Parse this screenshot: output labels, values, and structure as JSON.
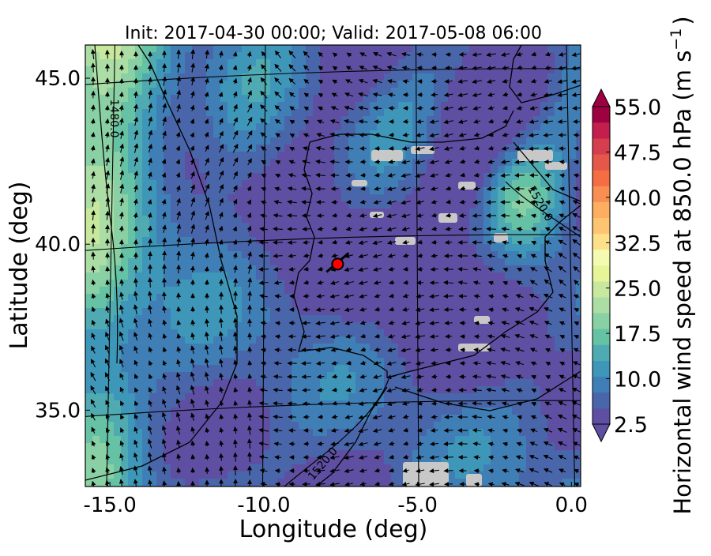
{
  "chart_data": {
    "type": "heatmap",
    "title": "Init: 2017-04-30 00:00; Valid: 2017-05-08 06:00",
    "xlabel": "Longitude (deg)",
    "ylabel": "Latitude (deg)",
    "xlim": [
      -15.8,
      0.3
    ],
    "ylim": [
      32.7,
      46.0
    ],
    "xticks": [
      "-15.0",
      "-10.0",
      "-5.0",
      "0.0"
    ],
    "yticks": [
      "35.0",
      "40.0",
      "45.0"
    ],
    "colorbar": {
      "label": "Horizontal wind speed at 850.0 hPa (m s",
      "label_sup": "−1",
      "label_end": ")",
      "ticks": [
        "2.5",
        "10.0",
        "17.5",
        "25.0",
        "32.5",
        "40.0",
        "47.5",
        "55.0"
      ],
      "min": 2.5,
      "max": 55.0,
      "levels": 20,
      "extend": "both",
      "colormap": "Spectral_r",
      "colors": [
        "#5e4fa2",
        "#4a66ab",
        "#3f7fb6",
        "#3e97b8",
        "#4fabb1",
        "#66c2a5",
        "#89d0a4",
        "#abdda4",
        "#c8e89e",
        "#e6f598",
        "#f4fbb0",
        "#fee08b",
        "#fdc572",
        "#fdae61",
        "#f98e52",
        "#f46d43",
        "#e55748",
        "#d53e4f",
        "#c21f4e",
        "#9e0142"
      ]
    },
    "contours": [
      {
        "label": "1480.0"
      },
      {
        "label": "1520.0"
      },
      {
        "label": "1520.0"
      }
    ],
    "marker": {
      "lon": -7.6,
      "lat": 39.4,
      "color": "#ff0000"
    },
    "wind_vectors": "shown"
  }
}
